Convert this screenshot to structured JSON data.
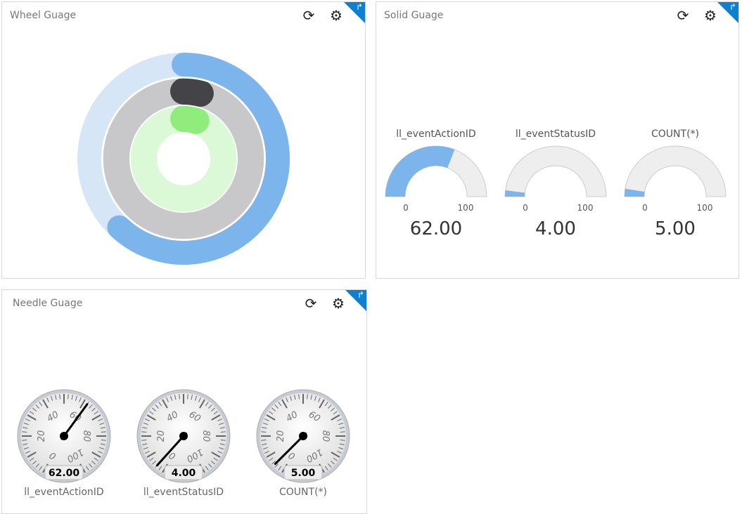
{
  "panels": {
    "wheel": {
      "title": "Wheel Guage"
    },
    "solid": {
      "title": "Solid Guage"
    },
    "needle": {
      "title": "Needle Guage"
    }
  },
  "icons": {
    "refresh": "refresh-icon",
    "settings": "gear-icon",
    "expand": "expand-icon"
  },
  "colors": {
    "blue": "#7cb5ec",
    "light_blue": "#d6e6f7",
    "dark": "#434348",
    "gray": "#c8c7c9",
    "green": "#90ed7d",
    "light_green": "#dcf9d7",
    "track": "#eeeeee"
  },
  "gauges": [
    {
      "label": "ll_eventActionID",
      "value": 62,
      "display": "62.00"
    },
    {
      "label": "ll_eventStatusID",
      "value": 4,
      "display": "4.00"
    },
    {
      "label": "COUNT(*)",
      "value": 5,
      "display": "5.00"
    }
  ],
  "scale": {
    "min": 0,
    "max": 100,
    "min_label": "0",
    "max_label": "100",
    "needle_ticks": [
      "0",
      "20",
      "40",
      "60",
      "80",
      "100"
    ]
  }
}
